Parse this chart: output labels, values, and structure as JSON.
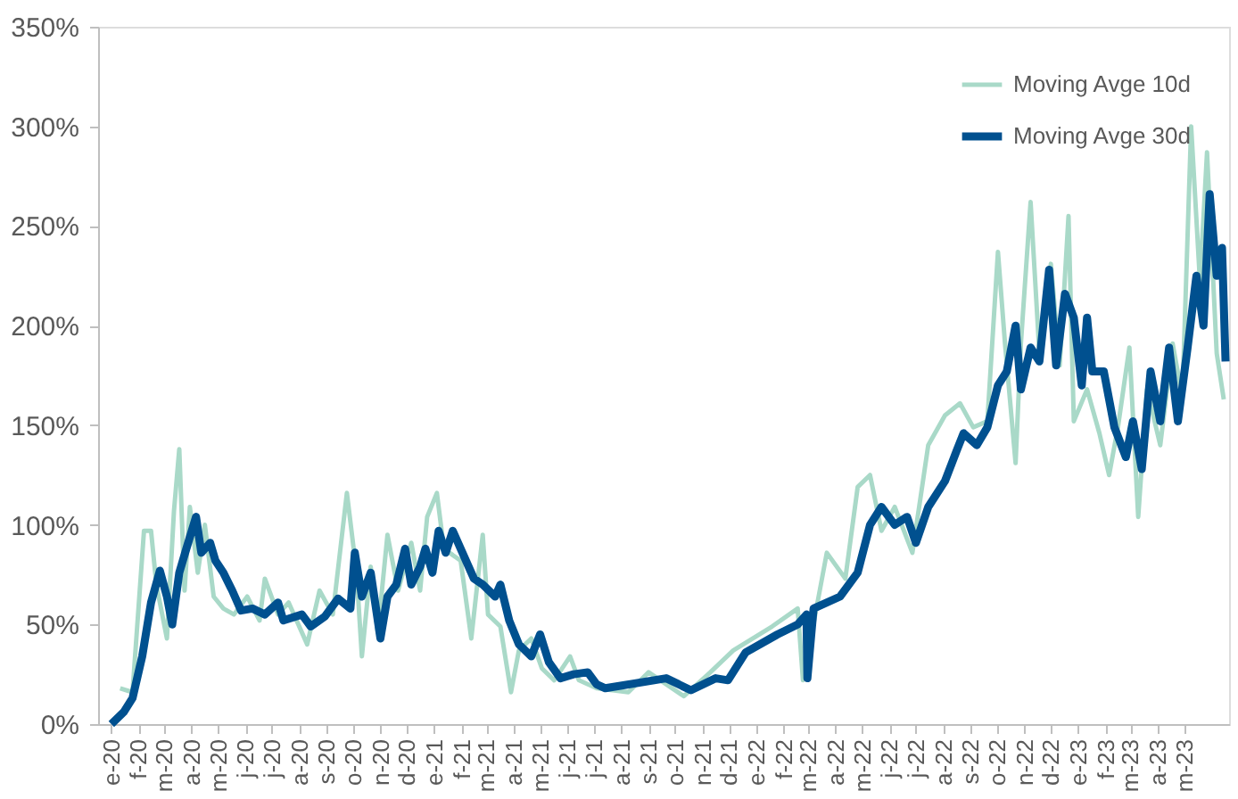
{
  "chart_data": {
    "type": "line",
    "series": [
      {
        "name": "Moving Avge 10d",
        "color": "#a9d9c8",
        "x": [
          "2020-01-11",
          "2020-01-25",
          "2020-02-07",
          "2020-02-15",
          "2020-02-21",
          "2020-03-04",
          "2020-03-12",
          "2020-03-18",
          "2020-03-24",
          "2020-03-30",
          "2020-04-08",
          "2020-04-16",
          "2020-04-26",
          "2020-05-07",
          "2020-05-19",
          "2020-06-03",
          "2020-06-17",
          "2020-06-23",
          "2020-07-08",
          "2020-07-20",
          "2020-08-10",
          "2020-08-24",
          "2020-09-08",
          "2020-09-24",
          "2020-10-05",
          "2020-10-11",
          "2020-10-21",
          "2020-10-29",
          "2020-11-09",
          "2020-11-21",
          "2020-12-06",
          "2020-12-16",
          "2020-12-24",
          "2021-01-04",
          "2021-01-12",
          "2021-01-31",
          "2021-02-12",
          "2021-02-25",
          "2021-03-03",
          "2021-03-17",
          "2021-03-29",
          "2021-04-07",
          "2021-04-21",
          "2021-05-03",
          "2021-05-17",
          "2021-06-04",
          "2021-06-14",
          "2021-07-04",
          "2021-08-09",
          "2021-09-01",
          "2021-10-11",
          "2021-11-10",
          "2021-12-06",
          "2022-01-19",
          "2022-02-17",
          "2022-02-23",
          "2022-03-22",
          "2022-04-12",
          "2022-04-26",
          "2022-05-10",
          "2022-05-23",
          "2022-06-07",
          "2022-06-27",
          "2022-07-15",
          "2022-08-03",
          "2022-08-20",
          "2022-09-04",
          "2022-09-20",
          "2022-10-02",
          "2022-10-10",
          "2022-10-22",
          "2022-10-28",
          "2022-11-08",
          "2022-11-18",
          "2022-12-01",
          "2022-12-11",
          "2022-12-21",
          "2022-12-27",
          "2023-01-11",
          "2023-01-25",
          "2023-02-05",
          "2023-02-15",
          "2023-02-28",
          "2023-03-10",
          "2023-03-20",
          "2023-04-04",
          "2023-04-18",
          "2023-04-29",
          "2023-05-09",
          "2023-05-19",
          "2023-05-27",
          "2023-06-07",
          "2023-06-15"
        ],
        "values": [
          18,
          16,
          97,
          97,
          70,
          43,
          107,
          138,
          67,
          109,
          76,
          100,
          64,
          58,
          55,
          64,
          52,
          73,
          55,
          61,
          40,
          67,
          55,
          116,
          76,
          34,
          79,
          46,
          95,
          67,
          91,
          67,
          104,
          116,
          88,
          82,
          43,
          95,
          55,
          49,
          16,
          37,
          43,
          28,
          22,
          34,
          22,
          18,
          16,
          26,
          14,
          26,
          37,
          49,
          58,
          22,
          86,
          73,
          119,
          125,
          97,
          109,
          86,
          140,
          155,
          161,
          149,
          152,
          237,
          191,
          131,
          191,
          262,
          186,
          231,
          180,
          255,
          152,
          168,
          146,
          125,
          149,
          189,
          104,
          168,
          140,
          191,
          164,
          300,
          222,
          287,
          186,
          163
        ]
      },
      {
        "name": "Moving Avge 30d",
        "color": "#00508f",
        "x": [
          "2020-01-01",
          "2020-01-15",
          "2020-01-25",
          "2020-02-05",
          "2020-02-15",
          "2020-02-25",
          "2020-03-04",
          "2020-03-10",
          "2020-03-18",
          "2020-03-26",
          "2020-04-06",
          "2020-04-12",
          "2020-04-22",
          "2020-04-28",
          "2020-05-07",
          "2020-05-17",
          "2020-05-27",
          "2020-06-09",
          "2020-06-23",
          "2020-07-08",
          "2020-07-14",
          "2020-08-04",
          "2020-08-14",
          "2020-08-30",
          "2020-09-14",
          "2020-09-28",
          "2020-10-03",
          "2020-10-11",
          "2020-10-21",
          "2020-11-01",
          "2020-11-09",
          "2020-11-19",
          "2020-11-29",
          "2020-12-06",
          "2020-12-16",
          "2020-12-22",
          "2020-12-30",
          "2021-01-06",
          "2021-01-14",
          "2021-01-22",
          "2021-02-02",
          "2021-02-15",
          "2021-02-25",
          "2021-03-11",
          "2021-03-17",
          "2021-03-27",
          "2021-04-07",
          "2021-04-21",
          "2021-05-01",
          "2021-05-11",
          "2021-05-24",
          "2021-06-08",
          "2021-06-24",
          "2021-07-04",
          "2021-07-14",
          "2021-09-21",
          "2021-10-19",
          "2021-11-16",
          "2021-11-30",
          "2021-12-20",
          "2022-01-25",
          "2022-02-17",
          "2022-02-27",
          "2022-02-28",
          "2022-03-07",
          "2022-04-06",
          "2022-04-26",
          "2022-05-10",
          "2022-05-23",
          "2022-06-07",
          "2022-06-21",
          "2022-07-01",
          "2022-07-15",
          "2022-08-03",
          "2022-08-16",
          "2022-08-24",
          "2022-09-08",
          "2022-09-20",
          "2022-10-02",
          "2022-10-12",
          "2022-10-22",
          "2022-10-28",
          "2022-11-08",
          "2022-11-18",
          "2022-11-29",
          "2022-12-07",
          "2022-12-17",
          "2022-12-27",
          "2023-01-05",
          "2023-01-11",
          "2023-01-17",
          "2023-01-30",
          "2023-02-11",
          "2023-02-24",
          "2023-03-04",
          "2023-03-14",
          "2023-03-24",
          "2023-04-04",
          "2023-04-14",
          "2023-04-24",
          "2023-05-05",
          "2023-05-15",
          "2023-05-23",
          "2023-05-30",
          "2023-06-07",
          "2023-06-13",
          "2023-06-17"
        ],
        "values": [
          0,
          6,
          13,
          34,
          61,
          77,
          64,
          50,
          76,
          88,
          104,
          86,
          91,
          82,
          76,
          67,
          57,
          58,
          55,
          61,
          52,
          55,
          49,
          54,
          63,
          58,
          86,
          64,
          76,
          43,
          64,
          70,
          88,
          70,
          79,
          88,
          76,
          97,
          86,
          97,
          86,
          73,
          70,
          64,
          70,
          52,
          40,
          34,
          45,
          31,
          23,
          25,
          26,
          20,
          18,
          23,
          17,
          23,
          22,
          36,
          45,
          50,
          55,
          23,
          58,
          64,
          76,
          100,
          109,
          100,
          104,
          91,
          109,
          122,
          137,
          146,
          140,
          149,
          170,
          177,
          200,
          168,
          189,
          182,
          228,
          180,
          216,
          204,
          170,
          204,
          177,
          177,
          149,
          134,
          152,
          128,
          177,
          152,
          189,
          152,
          189,
          225,
          200,
          266,
          225,
          239,
          182
        ]
      }
    ],
    "xlim": [
      "2019-12-17",
      "2023-06-21"
    ],
    "xticks": [
      {
        "value": "2020-01-01",
        "label": "e-20"
      },
      {
        "value": "2020-02-01",
        "label": "f-20"
      },
      {
        "value": "2020-03-01",
        "label": "m-20"
      },
      {
        "value": "2020-04-01",
        "label": "a-20"
      },
      {
        "value": "2020-05-01",
        "label": "m-20"
      },
      {
        "value": "2020-06-01",
        "label": "j-20"
      },
      {
        "value": "2020-07-01",
        "label": "j-20"
      },
      {
        "value": "2020-08-01",
        "label": "a-20"
      },
      {
        "value": "2020-09-01",
        "label": "s-20"
      },
      {
        "value": "2020-10-01",
        "label": "o-20"
      },
      {
        "value": "2020-11-01",
        "label": "n-20"
      },
      {
        "value": "2020-12-01",
        "label": "d-20"
      },
      {
        "value": "2021-01-01",
        "label": "e-21"
      },
      {
        "value": "2021-02-01",
        "label": "f-21"
      },
      {
        "value": "2021-03-01",
        "label": "m-21"
      },
      {
        "value": "2021-04-01",
        "label": "a-21"
      },
      {
        "value": "2021-05-01",
        "label": "m-21"
      },
      {
        "value": "2021-06-01",
        "label": "j-21"
      },
      {
        "value": "2021-07-01",
        "label": "j-21"
      },
      {
        "value": "2021-08-01",
        "label": "a-21"
      },
      {
        "value": "2021-09-01",
        "label": "s-21"
      },
      {
        "value": "2021-10-01",
        "label": "o-21"
      },
      {
        "value": "2021-11-01",
        "label": "n-21"
      },
      {
        "value": "2021-12-01",
        "label": "d-21"
      },
      {
        "value": "2022-01-01",
        "label": "e-22"
      },
      {
        "value": "2022-02-01",
        "label": "f-22"
      },
      {
        "value": "2022-03-01",
        "label": "m-22"
      },
      {
        "value": "2022-04-01",
        "label": "a-22"
      },
      {
        "value": "2022-05-01",
        "label": "m-22"
      },
      {
        "value": "2022-06-01",
        "label": "j-22"
      },
      {
        "value": "2022-07-01",
        "label": "j-22"
      },
      {
        "value": "2022-08-01",
        "label": "a-22"
      },
      {
        "value": "2022-09-01",
        "label": "s-22"
      },
      {
        "value": "2022-10-01",
        "label": "o-22"
      },
      {
        "value": "2022-11-01",
        "label": "n-22"
      },
      {
        "value": "2022-12-01",
        "label": "d-22"
      },
      {
        "value": "2023-01-01",
        "label": "e-23"
      },
      {
        "value": "2023-02-01",
        "label": "f-23"
      },
      {
        "value": "2023-03-01",
        "label": "m-23"
      },
      {
        "value": "2023-04-01",
        "label": "a-23"
      },
      {
        "value": "2023-05-01",
        "label": "m-23"
      }
    ],
    "ylim": [
      0,
      350
    ],
    "yticks": [
      {
        "value": 0,
        "label": "0%"
      },
      {
        "value": 50,
        "label": "50%"
      },
      {
        "value": 100,
        "label": "100%"
      },
      {
        "value": 150,
        "label": "150%"
      },
      {
        "value": 200,
        "label": "200%"
      },
      {
        "value": 250,
        "label": "250%"
      },
      {
        "value": 300,
        "label": "300%"
      },
      {
        "value": 350,
        "label": "350%"
      }
    ],
    "grid": false,
    "legend": "top right",
    "marker": "none",
    "line_style": "solid"
  }
}
